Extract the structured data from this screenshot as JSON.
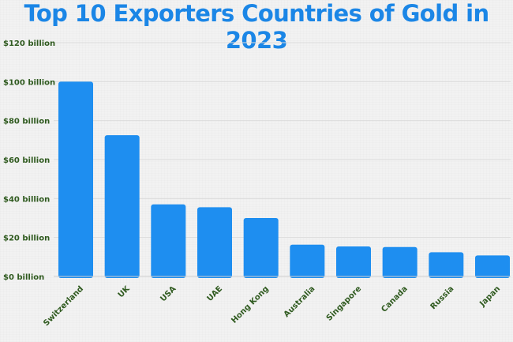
{
  "chart_data": {
    "type": "bar",
    "title": "Top 10 Exporters Countries of Gold in 2023",
    "xlabel": "",
    "ylabel": "",
    "categories": [
      "Switzerland",
      "UK",
      "USA",
      "UAE",
      "Hong Kong",
      "Australia",
      "Singapore",
      "Canada",
      "Russia",
      "Japan"
    ],
    "values": [
      100,
      72.5,
      37,
      35.5,
      30,
      16.3,
      15.4,
      15.1,
      12.4,
      10.8
    ],
    "unit": "billion USD",
    "ylim": [
      0,
      120
    ],
    "yticks": [
      0,
      20,
      40,
      60,
      80,
      100,
      120
    ],
    "ytick_labels": [
      "$0 billion",
      "$20 billion",
      "$40 billion",
      "$60 billion",
      "$80 billion",
      "$100 billion",
      "$120 billion"
    ],
    "grid": true,
    "legend": "none",
    "bar_color": "#1e8ef0",
    "title_color": "#1b86e6",
    "label_color": "#2f5a1f"
  }
}
